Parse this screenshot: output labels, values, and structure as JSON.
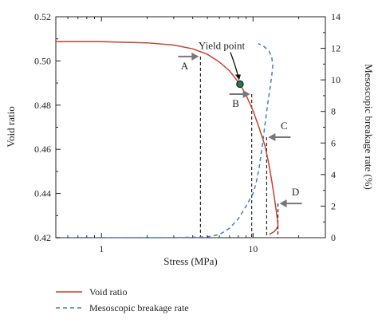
{
  "chart_data": {
    "type": "line",
    "title": "",
    "xlabel": "Stress (MPa)",
    "ylabel_left": "Void ratio",
    "ylabel_right": "Mesoscopic breakage rate (%)",
    "x_scale": "log",
    "xlim": [
      0.5,
      30
    ],
    "x_ticks": [
      1,
      10
    ],
    "x_tick_labels": [
      "1",
      "10"
    ],
    "ylim_left": [
      0.42,
      0.52
    ],
    "y_ticks_left": [
      "0.42",
      "0.44",
      "0.46",
      "0.48",
      "0.50",
      "0.52"
    ],
    "ylim_right": [
      0,
      14
    ],
    "y_ticks_right": [
      "0",
      "2",
      "4",
      "6",
      "8",
      "10",
      "12",
      "14"
    ],
    "grid": false,
    "legend_position": "bottom-left, below plot",
    "series": [
      {
        "name": "Void ratio",
        "axis": "left",
        "style": "solid",
        "color": "#c8412e",
        "x": [
          0.5,
          1,
          2,
          3,
          4,
          5,
          6,
          7,
          8.2,
          9,
          10,
          11,
          12,
          12.7,
          13.3,
          13.8,
          14.2,
          14.5,
          14.6,
          14.3,
          13.8,
          13.2,
          12.8
        ],
        "y": [
          0.5087,
          0.5087,
          0.5082,
          0.5072,
          0.5055,
          0.503,
          0.4995,
          0.4955,
          0.4895,
          0.4845,
          0.4775,
          0.4695,
          0.4615,
          0.4535,
          0.4455,
          0.4385,
          0.4325,
          0.4278,
          0.4255,
          0.424,
          0.4228,
          0.422,
          0.4215
        ]
      },
      {
        "name": "Mesoscopic breakage rate",
        "axis": "right",
        "style": "dashed",
        "color": "#3d7fc4",
        "x": [
          0.5,
          1,
          3,
          5,
          6,
          7,
          8,
          9,
          10,
          10.5,
          11,
          11.5,
          12,
          12.5,
          13,
          13.3,
          13.5,
          13.3,
          12.8,
          12.2,
          11.5,
          10.8
        ],
        "y": [
          0,
          0,
          0,
          0.05,
          0.2,
          0.6,
          1.2,
          2.0,
          2.8,
          3.5,
          4.5,
          5.8,
          7.2,
          8.5,
          9.6,
          10.3,
          10.9,
          11.4,
          11.8,
          12.0,
          12.2,
          12.3
        ]
      }
    ],
    "annotations": [
      {
        "label": "Yield point",
        "x": 8.2,
        "y": 0.4895,
        "type": "point"
      },
      {
        "label": "A",
        "x": 4.5,
        "y": 0.502,
        "type": "arrow-right"
      },
      {
        "label": "B",
        "x": 9.8,
        "y": 0.485,
        "type": "arrow-right"
      },
      {
        "label": "C",
        "x": 12.3,
        "y": 0.4655,
        "type": "arrow-left"
      },
      {
        "label": "D",
        "x": 14.6,
        "y": 0.4355,
        "type": "arrow-left"
      }
    ],
    "vertical_markers": [
      4.5,
      9.8,
      12.3,
      14.6
    ],
    "legend": [
      {
        "label": "Void ratio",
        "style": "solid",
        "color": "#c8412e"
      },
      {
        "label": "Mesoscopic breakage rate",
        "style": "dashed",
        "color": "#3d7fc4"
      }
    ]
  }
}
